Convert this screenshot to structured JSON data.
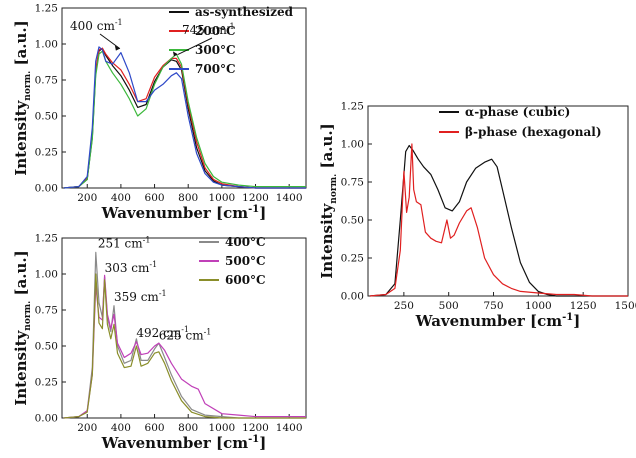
{
  "chart_data": [
    {
      "type": "line",
      "xlabel": "Wavenumber [cm",
      "xlabel_sup": "-1",
      "xlabel_end": "]",
      "ylabel": "Intensity",
      "ylabel_sub": "norm.",
      "ylabel_end": " [a.u.]",
      "xlim": [
        50,
        1500
      ],
      "ylim": [
        0,
        1.25
      ],
      "xticks": [
        200,
        400,
        600,
        800,
        1000,
        1200,
        1400
      ],
      "yticks": [
        "0.00",
        "0.25",
        "0.50",
        "0.75",
        "1.00",
        "1.25"
      ],
      "legend_position": "top-right",
      "annotations": [
        {
          "text": "400 cm",
          "sup": "-1",
          "x": 400,
          "y": 0.94
        },
        {
          "text": "745 cm",
          "sup": "-1",
          "x": 745,
          "y": 0.9
        }
      ],
      "series": [
        {
          "name": "as-synthesized",
          "color": "#111111",
          "x": [
            60,
            150,
            200,
            230,
            250,
            270,
            290,
            310,
            350,
            400,
            450,
            500,
            550,
            600,
            650,
            700,
            730,
            760,
            800,
            850,
            900,
            950,
            1000,
            1100,
            1200,
            1300,
            1400,
            1500
          ],
          "y": [
            0.0,
            0.01,
            0.06,
            0.35,
            0.8,
            0.95,
            0.97,
            0.92,
            0.85,
            0.78,
            0.68,
            0.56,
            0.58,
            0.74,
            0.84,
            0.89,
            0.88,
            0.82,
            0.55,
            0.28,
            0.12,
            0.05,
            0.02,
            0.01,
            0.0,
            0.0,
            0.0,
            0.0
          ]
        },
        {
          "name": "200°C",
          "color": "#e02020",
          "x": [
            60,
            150,
            200,
            230,
            250,
            270,
            290,
            310,
            350,
            400,
            450,
            500,
            550,
            600,
            650,
            700,
            730,
            760,
            800,
            850,
            900,
            950,
            1000,
            1100,
            1200,
            1300,
            1400,
            1500
          ],
          "y": [
            0.0,
            0.01,
            0.07,
            0.38,
            0.82,
            0.96,
            0.97,
            0.93,
            0.87,
            0.82,
            0.72,
            0.6,
            0.62,
            0.77,
            0.85,
            0.9,
            0.9,
            0.84,
            0.58,
            0.32,
            0.14,
            0.06,
            0.03,
            0.01,
            0.0,
            0.0,
            0.0,
            0.0
          ]
        },
        {
          "name": "300°C",
          "color": "#3bb83b",
          "x": [
            60,
            150,
            200,
            230,
            250,
            270,
            290,
            310,
            350,
            400,
            450,
            500,
            550,
            600,
            650,
            700,
            730,
            760,
            800,
            850,
            900,
            950,
            1000,
            1100,
            1200,
            1300,
            1400,
            1500
          ],
          "y": [
            0.0,
            0.01,
            0.06,
            0.34,
            0.78,
            0.93,
            0.95,
            0.88,
            0.8,
            0.72,
            0.62,
            0.5,
            0.55,
            0.72,
            0.84,
            0.9,
            0.93,
            0.86,
            0.6,
            0.35,
            0.17,
            0.08,
            0.04,
            0.02,
            0.01,
            0.01,
            0.01,
            0.01
          ]
        },
        {
          "name": "700°C",
          "color": "#2f49c8",
          "x": [
            60,
            150,
            200,
            230,
            250,
            270,
            290,
            310,
            350,
            400,
            450,
            500,
            550,
            600,
            650,
            700,
            730,
            760,
            800,
            850,
            900,
            950,
            1000,
            1100,
            1200,
            1300,
            1400,
            1500
          ],
          "y": [
            0.0,
            0.01,
            0.08,
            0.42,
            0.88,
            0.98,
            0.96,
            0.88,
            0.86,
            0.94,
            0.8,
            0.6,
            0.6,
            0.68,
            0.72,
            0.78,
            0.8,
            0.76,
            0.5,
            0.24,
            0.1,
            0.04,
            0.02,
            0.01,
            0.0,
            0.0,
            0.0,
            0.0
          ]
        }
      ]
    },
    {
      "type": "line",
      "xlabel": "Wavenumber [cm",
      "xlabel_sup": "-1",
      "xlabel_end": "]",
      "ylabel": "Intensity",
      "ylabel_sub": "norm.",
      "ylabel_end": " [a.u.]",
      "xlim": [
        50,
        1500
      ],
      "ylim": [
        0,
        1.25
      ],
      "xticks": [
        200,
        400,
        600,
        800,
        1000,
        1200,
        1400
      ],
      "yticks": [
        "0.00",
        "0.25",
        "0.50",
        "0.75",
        "1.00",
        "1.25"
      ],
      "legend_position": "top-right",
      "annotations": [
        {
          "text": "251 cm",
          "sup": "-1",
          "x": 251,
          "y": 1.17
        },
        {
          "text": "303 cm",
          "sup": "-1",
          "x": 303,
          "y": 1.0
        },
        {
          "text": "359 cm",
          "sup": "-1",
          "x": 359,
          "y": 0.8
        },
        {
          "text": "492 cm",
          "sup": "-1",
          "x": 492,
          "y": 0.55
        },
        {
          "text": "625 cm",
          "sup": "-1",
          "x": 625,
          "y": 0.53
        }
      ],
      "series": [
        {
          "name": "400°C",
          "color": "#8a8a8a",
          "x": [
            60,
            150,
            200,
            230,
            251,
            270,
            290,
            303,
            320,
            340,
            359,
            380,
            420,
            460,
            492,
            520,
            560,
            600,
            625,
            660,
            700,
            760,
            820,
            900,
            1000,
            1100,
            1200,
            1300,
            1400,
            1500
          ],
          "y": [
            0.0,
            0.01,
            0.05,
            0.35,
            1.15,
            0.8,
            0.7,
            0.98,
            0.7,
            0.6,
            0.78,
            0.5,
            0.38,
            0.4,
            0.55,
            0.4,
            0.4,
            0.48,
            0.52,
            0.42,
            0.3,
            0.15,
            0.06,
            0.02,
            0.01,
            0.0,
            0.0,
            0.0,
            0.0,
            0.0
          ]
        },
        {
          "name": "500°C",
          "color": "#c040b8",
          "x": [
            60,
            150,
            200,
            230,
            251,
            270,
            290,
            303,
            320,
            340,
            359,
            380,
            420,
            460,
            492,
            520,
            560,
            600,
            625,
            660,
            700,
            760,
            820,
            860,
            900,
            1000,
            1100,
            1200,
            1300,
            1400,
            1500
          ],
          "y": [
            0.0,
            0.01,
            0.05,
            0.3,
            0.92,
            0.7,
            0.68,
            0.99,
            0.72,
            0.62,
            0.72,
            0.52,
            0.42,
            0.45,
            0.53,
            0.44,
            0.45,
            0.5,
            0.52,
            0.47,
            0.38,
            0.27,
            0.22,
            0.2,
            0.1,
            0.03,
            0.02,
            0.01,
            0.01,
            0.01,
            0.01
          ]
        },
        {
          "name": "600°C",
          "color": "#8a8e2a",
          "x": [
            60,
            150,
            200,
            230,
            251,
            270,
            290,
            303,
            320,
            340,
            359,
            380,
            420,
            460,
            492,
            520,
            560,
            600,
            625,
            660,
            700,
            760,
            820,
            900,
            1000,
            1100,
            1200,
            1300,
            1400,
            1500
          ],
          "y": [
            0.0,
            0.01,
            0.04,
            0.3,
            1.0,
            0.66,
            0.62,
            0.96,
            0.65,
            0.55,
            0.65,
            0.45,
            0.35,
            0.36,
            0.5,
            0.36,
            0.38,
            0.45,
            0.46,
            0.38,
            0.26,
            0.12,
            0.04,
            0.01,
            0.0,
            0.0,
            0.0,
            0.0,
            0.0,
            0.0
          ]
        }
      ]
    },
    {
      "type": "line",
      "xlabel": "Wavenumber [cm",
      "xlabel_sup": "-1",
      "xlabel_end": "]",
      "ylabel": "Intensity",
      "ylabel_sub": "norm.",
      "ylabel_end": " [a.u.]",
      "xlim": [
        50,
        1500
      ],
      "ylim": [
        0,
        1.25
      ],
      "xticks": [
        250,
        500,
        750,
        1000,
        1250,
        1500
      ],
      "yticks": [
        "0.00",
        "0.25",
        "0.50",
        "0.75",
        "1.00",
        "1.25"
      ],
      "legend_position": "top-right",
      "annotations": [],
      "series": [
        {
          "name": "α-phase (cubic)",
          "color": "#111111",
          "x": [
            60,
            150,
            200,
            230,
            260,
            280,
            300,
            330,
            360,
            400,
            440,
            480,
            520,
            560,
            600,
            650,
            700,
            740,
            770,
            800,
            850,
            900,
            950,
            1000,
            1050,
            1100,
            1200,
            1300,
            1400,
            1500
          ],
          "y": [
            0.0,
            0.01,
            0.08,
            0.5,
            0.95,
            0.99,
            0.96,
            0.9,
            0.85,
            0.8,
            0.7,
            0.58,
            0.56,
            0.62,
            0.75,
            0.84,
            0.88,
            0.9,
            0.85,
            0.7,
            0.45,
            0.22,
            0.09,
            0.03,
            0.01,
            0.0,
            0.0,
            0.0,
            0.0,
            0.0
          ]
        },
        {
          "name": "β-phase (hexagonal)",
          "color": "#e02020",
          "x": [
            60,
            150,
            200,
            230,
            250,
            265,
            280,
            295,
            305,
            320,
            345,
            370,
            400,
            430,
            460,
            490,
            510,
            530,
            560,
            600,
            625,
            660,
            700,
            750,
            800,
            850,
            900,
            1000,
            1100,
            1200,
            1300,
            1400,
            1500
          ],
          "y": [
            0.0,
            0.01,
            0.05,
            0.3,
            0.82,
            0.55,
            0.65,
            1.0,
            0.7,
            0.62,
            0.6,
            0.42,
            0.38,
            0.36,
            0.35,
            0.5,
            0.38,
            0.4,
            0.48,
            0.56,
            0.58,
            0.45,
            0.25,
            0.14,
            0.08,
            0.05,
            0.03,
            0.02,
            0.01,
            0.01,
            0.0,
            0.0,
            0.0
          ]
        }
      ]
    }
  ]
}
